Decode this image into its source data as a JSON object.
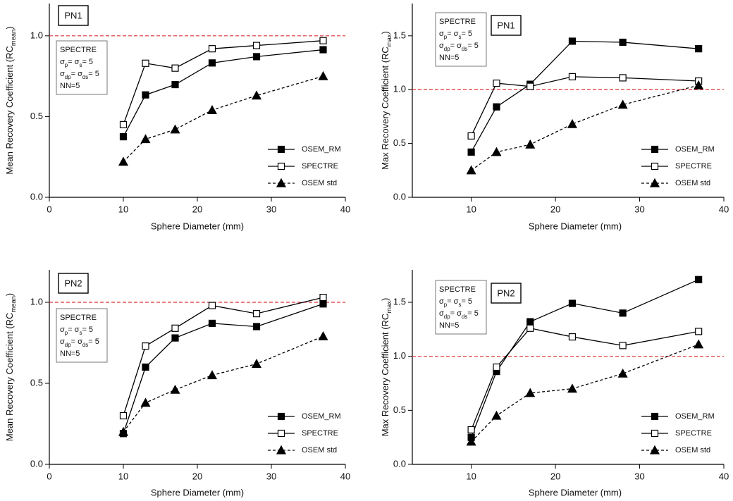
{
  "chart_data": [
    {
      "type": "line",
      "title": "PN1",
      "ylabel": [
        {
          "t": "Mean Recovery Coefficient (RC"
        },
        {
          "sub": "mean"
        },
        {
          "t": ")"
        }
      ],
      "xlabel": "Sphere Diameter (mm)",
      "annotation": [
        [
          {
            "t": "SPECTRE"
          }
        ],
        [
          {
            "t": "σ"
          },
          {
            "sub": "p"
          },
          {
            "t": "= σ"
          },
          {
            "sub": "s"
          },
          {
            "t": "= 5"
          }
        ],
        [
          {
            "t": "σ"
          },
          {
            "sub": "dp"
          },
          {
            "t": "= σ"
          },
          {
            "sub": "ds"
          },
          {
            "t": "= 5"
          }
        ],
        [
          {
            "t": "NN=5"
          }
        ]
      ],
      "x": [
        10,
        13,
        17,
        22,
        28,
        37
      ],
      "series": [
        {
          "name": "OSEM_RM",
          "color": "#000000",
          "marker": "square",
          "fill": "#000000",
          "dash": false,
          "values": [
            0.375,
            0.634,
            0.698,
            0.832,
            0.871,
            0.914
          ]
        },
        {
          "name": "SPECTRE",
          "color": "#000000",
          "marker": "square",
          "fill": "#ffffff",
          "dash": false,
          "values": [
            0.45,
            0.83,
            0.8,
            0.92,
            0.94,
            0.97
          ]
        },
        {
          "name": "OSEM std",
          "color": "#000000",
          "marker": "triangle",
          "fill": "#000000",
          "dash": true,
          "values": [
            0.22,
            0.36,
            0.42,
            0.54,
            0.63,
            0.75
          ]
        }
      ],
      "xlim": [
        0,
        40
      ],
      "xticks": [
        0,
        10,
        20,
        30,
        40
      ],
      "ylim": [
        0,
        1.2
      ],
      "yticks": [
        {
          "value": 0,
          "label": "0.0"
        },
        {
          "value": 0.5,
          "label": "0.5"
        },
        {
          "value": 1,
          "label": "1.0"
        }
      ],
      "hline": 1,
      "hline_color": "#e03030",
      "legend": "lower right"
    },
    {
      "type": "line",
      "title": "PN1",
      "ylabel": [
        {
          "t": "Max Recovery Coefficient (RC"
        },
        {
          "sub": "max"
        },
        {
          "t": ")"
        }
      ],
      "xlabel": "Sphere Diameter (mm)",
      "annotation": [
        [
          {
            "t": "SPECTRE"
          }
        ],
        [
          {
            "t": "σ"
          },
          {
            "sub": "p"
          },
          {
            "t": "= σ"
          },
          {
            "sub": "s"
          },
          {
            "t": "= 5"
          }
        ],
        [
          {
            "t": "σ"
          },
          {
            "sub": "dp"
          },
          {
            "t": "= σ"
          },
          {
            "sub": "ds"
          },
          {
            "t": "= 5"
          }
        ],
        [
          {
            "t": "NN=5"
          }
        ]
      ],
      "x": [
        10,
        13,
        17,
        22,
        28,
        37
      ],
      "series": [
        {
          "name": "OSEM_RM",
          "color": "#000000",
          "marker": "square",
          "fill": "#000000",
          "dash": false,
          "values": [
            0.42,
            0.84,
            1.05,
            1.45,
            1.44,
            1.38
          ]
        },
        {
          "name": "SPECTRE",
          "color": "#000000",
          "marker": "square",
          "fill": "#ffffff",
          "dash": false,
          "values": [
            0.57,
            1.06,
            1.03,
            1.12,
            1.11,
            1.08
          ]
        },
        {
          "name": "OSEM std",
          "color": "#000000",
          "marker": "triangle",
          "fill": "#000000",
          "dash": true,
          "values": [
            0.25,
            0.42,
            0.49,
            0.68,
            0.86,
            1.04
          ]
        }
      ],
      "xlim": [
        3,
        40
      ],
      "xticks": [
        10,
        20,
        30,
        40
      ],
      "ylim": [
        0,
        1.8
      ],
      "yticks": [
        {
          "value": 0,
          "label": "0.0"
        },
        {
          "value": 0.5,
          "label": "0.5"
        },
        {
          "value": 1,
          "label": "1.0"
        },
        {
          "value": 1.5,
          "label": "1.5"
        }
      ],
      "hline": 1,
      "hline_color": "#e03030",
      "legend": "lower right"
    },
    {
      "type": "line",
      "title": "PN2",
      "ylabel": [
        {
          "t": "Mean Recovery Coefficient (RC"
        },
        {
          "sub": "mean"
        },
        {
          "t": ")"
        }
      ],
      "xlabel": "Sphere Diameter (mm)",
      "annotation": [
        [
          {
            "t": "SPECTRE"
          }
        ],
        [
          {
            "t": "σ"
          },
          {
            "sub": "p"
          },
          {
            "t": "= σ"
          },
          {
            "sub": "s"
          },
          {
            "t": "= 5"
          }
        ],
        [
          {
            "t": "σ"
          },
          {
            "sub": "dp"
          },
          {
            "t": "= σ"
          },
          {
            "sub": "ds"
          },
          {
            "t": "= 5"
          }
        ],
        [
          {
            "t": "NN=5"
          }
        ]
      ],
      "x": [
        10,
        13,
        17,
        22,
        28,
        37
      ],
      "series": [
        {
          "name": "OSEM_RM",
          "color": "#000000",
          "marker": "square",
          "fill": "#000000",
          "dash": false,
          "values": [
            0.19,
            0.6,
            0.78,
            0.87,
            0.85,
            0.99
          ]
        },
        {
          "name": "SPECTRE",
          "color": "#000000",
          "marker": "square",
          "fill": "#ffffff",
          "dash": false,
          "values": [
            0.3,
            0.73,
            0.84,
            0.98,
            0.93,
            1.03
          ]
        },
        {
          "name": "OSEM std",
          "color": "#000000",
          "marker": "triangle",
          "fill": "#000000",
          "dash": true,
          "values": [
            0.2,
            0.38,
            0.46,
            0.55,
            0.62,
            0.79
          ]
        }
      ],
      "xlim": [
        0,
        40
      ],
      "xticks": [
        0,
        10,
        20,
        30,
        40
      ],
      "ylim": [
        0,
        1.2
      ],
      "yticks": [
        {
          "value": 0,
          "label": "0.0"
        },
        {
          "value": 0.5,
          "label": "0.5"
        },
        {
          "value": 1,
          "label": "1.0"
        }
      ],
      "hline": 1,
      "hline_color": "#e03030",
      "legend": "lower right"
    },
    {
      "type": "line",
      "title": "PN2",
      "ylabel": [
        {
          "t": "Max Recovery Coefficient (RC"
        },
        {
          "sub": "max"
        },
        {
          "t": ")"
        }
      ],
      "xlabel": "Sphere Diameter (mm)",
      "annotation": [
        [
          {
            "t": "SPECTRE"
          }
        ],
        [
          {
            "t": "σ"
          },
          {
            "sub": "p"
          },
          {
            "t": "= σ"
          },
          {
            "sub": "s"
          },
          {
            "t": "= 5"
          }
        ],
        [
          {
            "t": "σ"
          },
          {
            "sub": "dp"
          },
          {
            "t": "= σ"
          },
          {
            "sub": "ds"
          },
          {
            "t": "= 5"
          }
        ],
        [
          {
            "t": "NN=5"
          }
        ]
      ],
      "x": [
        10,
        13,
        17,
        22,
        28,
        37
      ],
      "series": [
        {
          "name": "OSEM_RM",
          "color": "#000000",
          "marker": "square",
          "fill": "#000000",
          "dash": false,
          "values": [
            0.25,
            0.86,
            1.32,
            1.49,
            1.4,
            1.71
          ]
        },
        {
          "name": "SPECTRE",
          "color": "#000000",
          "marker": "square",
          "fill": "#ffffff",
          "dash": false,
          "values": [
            0.32,
            0.9,
            1.26,
            1.18,
            1.1,
            1.23
          ]
        },
        {
          "name": "OSEM std",
          "color": "#000000",
          "marker": "triangle",
          "fill": "#000000",
          "dash": true,
          "values": [
            0.21,
            0.45,
            0.66,
            0.7,
            0.84,
            1.11
          ]
        }
      ],
      "xlim": [
        3,
        40
      ],
      "xticks": [
        10,
        20,
        30,
        40
      ],
      "ylim": [
        0,
        1.8
      ],
      "yticks": [
        {
          "value": 0,
          "label": "0.0"
        },
        {
          "value": 0.5,
          "label": "0.5"
        },
        {
          "value": 1,
          "label": "1.0"
        },
        {
          "value": 1.5,
          "label": "1.5"
        }
      ],
      "hline": 1,
      "hline_color": "#e03030",
      "legend": "lower right"
    }
  ]
}
